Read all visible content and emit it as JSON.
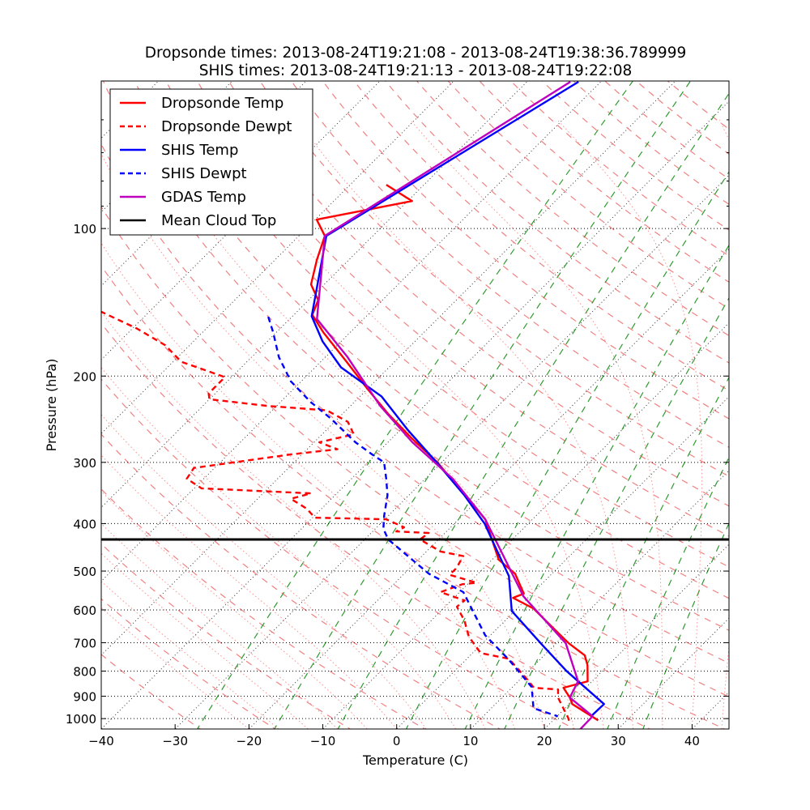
{
  "chart_data": {
    "type": "line",
    "subtype": "skew-t log-p",
    "title_lines": [
      "Dropsonde times: 2013-08-24T19:21:08 - 2013-08-24T19:38:36.789999",
      "SHIS times: 2013-08-24T19:21:13 - 2013-08-24T19:22:08"
    ],
    "xlabel": "Temperature (C)",
    "ylabel": "Pressure (hPa)",
    "xlim": [
      -40,
      45
    ],
    "ylim": [
      1050,
      50
    ],
    "yscale": "log",
    "skew_deg": 45,
    "xticks": [
      -40,
      -30,
      -20,
      -10,
      0,
      10,
      20,
      30,
      40
    ],
    "xtick_labels": [
      "−40",
      "−30",
      "−20",
      "−10",
      "0",
      "10",
      "20",
      "30",
      "40"
    ],
    "yticks": [
      100,
      200,
      300,
      400,
      500,
      600,
      700,
      800,
      900,
      1000
    ],
    "ytick_labels": [
      "100",
      "200",
      "300",
      "400",
      "500",
      "600",
      "700",
      "800",
      "900",
      "1000"
    ],
    "grid": true,
    "legend_placement": "top-left",
    "mean_cloud_top_hpa": 431,
    "series": [
      {
        "name": "Dropsonde Temp",
        "color": "#ff0000",
        "dash": "solid",
        "p": [
          81.4,
          87.9,
          95.9,
          103.5,
          116,
          130,
          140,
          150,
          163,
          187,
          212,
          239,
          268,
          300,
          341,
          392,
          474,
          506,
          556,
          567,
          596,
          660,
          702,
          743,
          778,
          839,
          865,
          906,
          934,
          1008
        ],
        "t": [
          -75.1,
          -69.4,
          -79.8,
          -76.5,
          -74.3,
          -71.8,
          -68.7,
          -67.5,
          -63.6,
          -56.5,
          -50.1,
          -43.8,
          -37.3,
          -30.6,
          -23.8,
          -16.4,
          -9.1,
          -5.0,
          -1.1,
          -2.0,
          2.2,
          8.1,
          11.7,
          15.5,
          17.2,
          19.4,
          17.0,
          19.2,
          20.4,
          26.1
        ]
      },
      {
        "name": "Dropsonde Dewpt",
        "color": "#ff0000",
        "dash": "dashed",
        "p": [
          147.5,
          160,
          173,
          187,
          201,
          217,
          223,
          230,
          235,
          248,
          263,
          273,
          282,
          289,
          308,
          324,
          339,
          347,
          356,
          373,
          389,
          392,
          407,
          415,
          418,
          431,
          456,
          466,
          493,
          509,
          528,
          532,
          552,
          574,
          591,
          631,
          681,
          735,
          755,
          823,
          865,
          872,
          906,
          996,
          1015
        ],
        "t": [
          -96.7,
          -89.4,
          -83.3,
          -78.9,
          -70.9,
          -70.9,
          -70.0,
          -61.4,
          -52.6,
          -48.2,
          -45.7,
          -49.3,
          -45.9,
          -51.5,
          -62.8,
          -62.3,
          -59.0,
          -43.5,
          -45.5,
          -42.0,
          -39.7,
          -29.8,
          -26.3,
          -26.8,
          -22.2,
          -22.5,
          -18.1,
          -14.4,
          -13.7,
          -13.7,
          -9.0,
          -10.7,
          -12.6,
          -8.2,
          -8.4,
          -5.5,
          -2.7,
          1.1,
          5.7,
          10.4,
          13.0,
          16.5,
          17.6,
          21.7,
          22.4
        ]
      },
      {
        "name": "SHIS Temp",
        "color": "#0000ff",
        "dash": "solid",
        "p": [
          50.2,
          103.5,
          151,
          170,
          192,
          220,
          258,
          300,
          350,
          400,
          456,
          512,
          603,
          707,
          799,
          846,
          934,
          985
        ],
        "t": [
          -63.0,
          -76.3,
          -67.4,
          -62.5,
          -56.5,
          -47.1,
          -38.9,
          -30.7,
          -22.5,
          -15.9,
          -10.4,
          -5.5,
          -0.4,
          8.3,
          15.1,
          18.6,
          24.7,
          24.6
        ]
      },
      {
        "name": "SHIS Dewpt",
        "color": "#0000ff",
        "dash": "dashed",
        "p": [
          151.4,
          163,
          183,
          205,
          226,
          244,
          273,
          289,
          300,
          324,
          350,
          385,
          410,
          431,
          506,
          552,
          676,
          758,
          862,
          952,
          989
        ],
        "t": [
          -73.2,
          -70.4,
          -66.3,
          -61.4,
          -55.9,
          -51.0,
          -44.4,
          -40.5,
          -37.8,
          -35.3,
          -32.9,
          -30.6,
          -28.9,
          -26.8,
          -16.7,
          -9.5,
          -0.7,
          5.8,
          12.6,
          15.7,
          20.1
        ]
      },
      {
        "name": "GDAS Temp",
        "color": "#bf00bf",
        "dash": "solid",
        "p": [
          50.2,
          103.5,
          153,
          183,
          230,
          273,
          324,
          392,
          563,
          702,
          839,
          906,
          989,
          1054
        ],
        "t": [
          -64.1,
          -76.5,
          -66.3,
          -57.0,
          -46.0,
          -36.7,
          -26.3,
          -16.4,
          -0.8,
          11.3,
          18.1,
          19.2,
          24.8,
          24.9
        ]
      },
      {
        "name": "Mean Cloud Top",
        "color": "#000000",
        "dash": "solid",
        "p_const": 431
      }
    ]
  }
}
